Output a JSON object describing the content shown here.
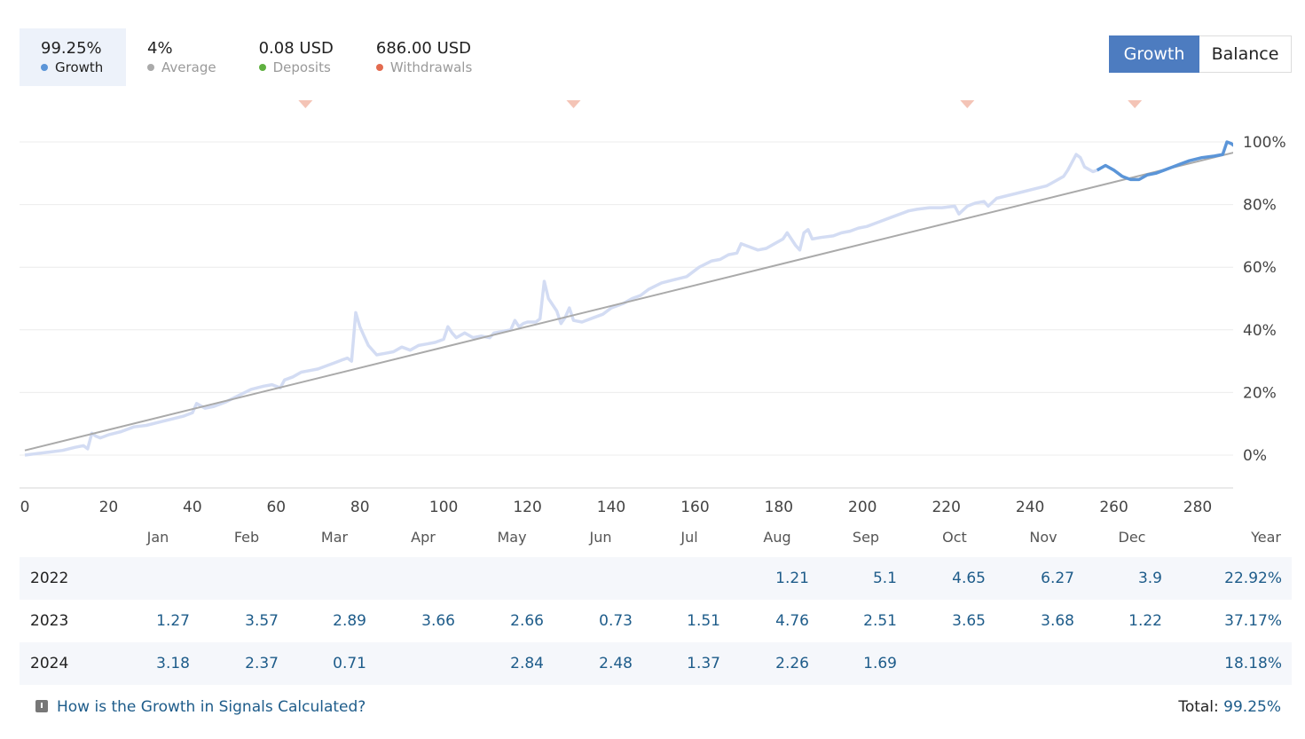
{
  "summary": {
    "growth": {
      "value": "99.25%",
      "label": "Growth",
      "color": "#5b95d8"
    },
    "average": {
      "value": "4%",
      "label": "Average",
      "color": "#aaaaaa"
    },
    "deposits": {
      "value": "0.08 USD",
      "label": "Deposits",
      "color": "#5fb040"
    },
    "withdrawals": {
      "value": "686.00 USD",
      "label": "Withdrawals",
      "color": "#e36b4f"
    }
  },
  "toggle": {
    "growth_label": "Growth",
    "balance_label": "Balance"
  },
  "chart_data": {
    "type": "line",
    "title": "",
    "xlabel": "",
    "ylabel": "",
    "x_ticks": [
      0,
      20,
      40,
      60,
      80,
      100,
      120,
      140,
      160,
      180,
      200,
      220,
      240,
      260,
      280
    ],
    "y_ticks": [
      0,
      20,
      40,
      60,
      80,
      100
    ],
    "y_tick_labels": [
      "0%",
      "20%",
      "40%",
      "60%",
      "80%",
      "100%"
    ],
    "xlim": [
      0,
      291
    ],
    "ylim": [
      -10,
      105
    ],
    "grid": "horizontal",
    "withdrawal_markers_x": [
      67,
      131,
      225,
      265
    ],
    "series": [
      {
        "role": "history",
        "color": "#d3dcf3",
        "points": [
          [
            0,
            0
          ],
          [
            3,
            0.5
          ],
          [
            6,
            1
          ],
          [
            9,
            1.5
          ],
          [
            12,
            2.5
          ],
          [
            14,
            3
          ],
          [
            15,
            2
          ],
          [
            16,
            7
          ],
          [
            17,
            6
          ],
          [
            18,
            5.5
          ],
          [
            20,
            6.5
          ],
          [
            23,
            7.5
          ],
          [
            26,
            9
          ],
          [
            29,
            9.5
          ],
          [
            32,
            10.5
          ],
          [
            35,
            11.5
          ],
          [
            38,
            12.5
          ],
          [
            40,
            13.5
          ],
          [
            41,
            16.5
          ],
          [
            43,
            15
          ],
          [
            45,
            15.5
          ],
          [
            48,
            17
          ],
          [
            51,
            19
          ],
          [
            54,
            21
          ],
          [
            57,
            22
          ],
          [
            59,
            22.5
          ],
          [
            61,
            21.5
          ],
          [
            62,
            24
          ],
          [
            64,
            25
          ],
          [
            66,
            26.5
          ],
          [
            68,
            27
          ],
          [
            70,
            27.5
          ],
          [
            72,
            28.5
          ],
          [
            74,
            29.5
          ],
          [
            76,
            30.5
          ],
          [
            77,
            31
          ],
          [
            78,
            30
          ],
          [
            79,
            45.5
          ],
          [
            80,
            41
          ],
          [
            81,
            38
          ],
          [
            82,
            35
          ],
          [
            84,
            32
          ],
          [
            86,
            32.5
          ],
          [
            88,
            33
          ],
          [
            90,
            34.5
          ],
          [
            92,
            33.5
          ],
          [
            94,
            35
          ],
          [
            96,
            35.5
          ],
          [
            98,
            36
          ],
          [
            100,
            37
          ],
          [
            101,
            41
          ],
          [
            102,
            39
          ],
          [
            103,
            37.5
          ],
          [
            105,
            39
          ],
          [
            107,
            37.5
          ],
          [
            109,
            38
          ],
          [
            111,
            37.5
          ],
          [
            112,
            39
          ],
          [
            114,
            39.5
          ],
          [
            116,
            40
          ],
          [
            117,
            43
          ],
          [
            118,
            41
          ],
          [
            119,
            42
          ],
          [
            120,
            42.5
          ],
          [
            122,
            42.5
          ],
          [
            123,
            43.5
          ],
          [
            124,
            55.5
          ],
          [
            125,
            50
          ],
          [
            127,
            46
          ],
          [
            128,
            42
          ],
          [
            129,
            44
          ],
          [
            130,
            47
          ],
          [
            131,
            43
          ],
          [
            133,
            42.5
          ],
          [
            136,
            44
          ],
          [
            138,
            45
          ],
          [
            140,
            47
          ],
          [
            143,
            48.5
          ],
          [
            145,
            50
          ],
          [
            147,
            51
          ],
          [
            149,
            53
          ],
          [
            152,
            55
          ],
          [
            155,
            56
          ],
          [
            158,
            57
          ],
          [
            161,
            60
          ],
          [
            164,
            62
          ],
          [
            166,
            62.5
          ],
          [
            168,
            64
          ],
          [
            170,
            64.5
          ],
          [
            171,
            67.5
          ],
          [
            173,
            66.5
          ],
          [
            175,
            65.5
          ],
          [
            177,
            66
          ],
          [
            179,
            67.5
          ],
          [
            181,
            69
          ],
          [
            182,
            71
          ],
          [
            183,
            69
          ],
          [
            184,
            67
          ],
          [
            185,
            65.5
          ],
          [
            186,
            71
          ],
          [
            187,
            72
          ],
          [
            188,
            69
          ],
          [
            190,
            69.5
          ],
          [
            193,
            70
          ],
          [
            195,
            71
          ],
          [
            197,
            71.5
          ],
          [
            199,
            72.5
          ],
          [
            201,
            73
          ],
          [
            204,
            74.5
          ],
          [
            207,
            76
          ],
          [
            209,
            77
          ],
          [
            211,
            78
          ],
          [
            213,
            78.5
          ],
          [
            216,
            79
          ],
          [
            219,
            79
          ],
          [
            222,
            79.5
          ],
          [
            223,
            77
          ],
          [
            225,
            79.5
          ],
          [
            227,
            80.5
          ],
          [
            229,
            81
          ],
          [
            230,
            79.5
          ],
          [
            232,
            82
          ],
          [
            235,
            83
          ],
          [
            238,
            84
          ],
          [
            241,
            85
          ],
          [
            244,
            86
          ],
          [
            246,
            87.5
          ],
          [
            248,
            89
          ],
          [
            249,
            91
          ],
          [
            251,
            96
          ],
          [
            252,
            95
          ],
          [
            253,
            92
          ],
          [
            255,
            90.5
          ],
          [
            256,
            91
          ]
        ]
      },
      {
        "role": "recent",
        "color": "#5b95d8",
        "points": [
          [
            256,
            91
          ],
          [
            258,
            92.5
          ],
          [
            260,
            91
          ],
          [
            262,
            89
          ],
          [
            264,
            88
          ],
          [
            266,
            88
          ],
          [
            268,
            89.5
          ],
          [
            270,
            90
          ],
          [
            272,
            91
          ],
          [
            274,
            92
          ],
          [
            276,
            93
          ],
          [
            278,
            94
          ],
          [
            281,
            95
          ],
          [
            284,
            95.5
          ],
          [
            286,
            96
          ],
          [
            287,
            100
          ],
          [
            288,
            99.5
          ],
          [
            289,
            98.5
          ],
          [
            290,
            97.5
          ],
          [
            291,
            97
          ],
          [
            293,
            97
          ],
          [
            294,
            96
          ],
          [
            295,
            95.5
          ],
          [
            297,
            95.5
          ],
          [
            298,
            96.5
          ],
          [
            299,
            97.5
          ],
          [
            301,
            98
          ],
          [
            302,
            98.5
          ],
          [
            303,
            99
          ],
          [
            305,
            99.5
          ]
        ]
      },
      {
        "role": "average",
        "color": "#aaaaaa",
        "points": [
          [
            0,
            1.5
          ],
          [
            305,
            102
          ]
        ]
      }
    ]
  },
  "months": {
    "labels": [
      "Jan",
      "Feb",
      "Mar",
      "Apr",
      "May",
      "Jun",
      "Jul",
      "Aug",
      "Sep",
      "Oct",
      "Nov",
      "Dec"
    ],
    "year_label": "Year"
  },
  "monthly_table": [
    {
      "year": "2022",
      "values": [
        "",
        "",
        "",
        "",
        "",
        "",
        "",
        "1.21",
        "5.1",
        "4.65",
        "6.27",
        "3.9"
      ],
      "total": "22.92%"
    },
    {
      "year": "2023",
      "values": [
        "1.27",
        "3.57",
        "2.89",
        "3.66",
        "2.66",
        "0.73",
        "1.51",
        "4.76",
        "2.51",
        "3.65",
        "3.68",
        "1.22"
      ],
      "total": "37.17%"
    },
    {
      "year": "2024",
      "values": [
        "3.18",
        "2.37",
        "0.71",
        "",
        "2.84",
        "2.48",
        "1.37",
        "2.26",
        "1.69",
        "",
        "",
        ""
      ],
      "total": "18.18%"
    }
  ],
  "footer": {
    "link_text": "How is the Growth in Signals Calculated?",
    "total_label": "Total:",
    "total_value": "99.25%"
  }
}
